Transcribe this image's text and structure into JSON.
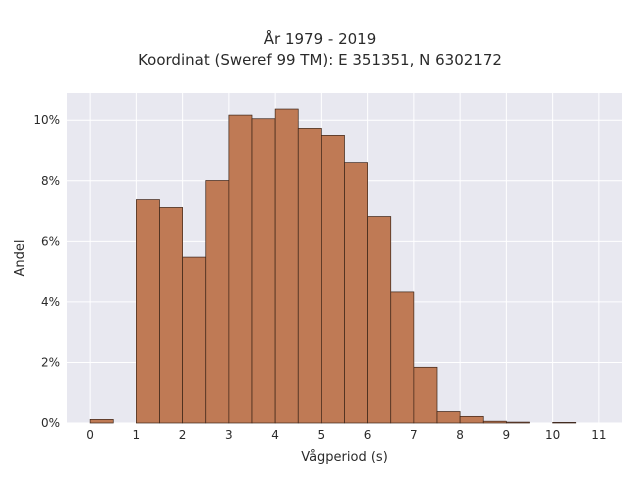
{
  "chart_data": {
    "type": "bar",
    "title": "År 1979 - 2019",
    "subtitle": "Koordinat (Sweref 99 TM): E 351351, N 6302172",
    "xlabel": "Vågperiod (s)",
    "ylabel": "Andel",
    "xlim": [
      -0.5,
      11.5
    ],
    "ylim": [
      0,
      10.9
    ],
    "x_ticks": [
      0,
      1,
      2,
      3,
      4,
      5,
      6,
      7,
      8,
      9,
      10,
      11
    ],
    "y_ticks": [
      0,
      2,
      4,
      6,
      8,
      10
    ],
    "y_tick_suffix": "%",
    "grid": true,
    "bar_color": "#bf7a55",
    "bar_edge_color": "#3b2418",
    "bin_width": 0.5,
    "bins": [
      {
        "x0": 0.0,
        "value": 0.12
      },
      {
        "x0": 1.0,
        "value": 7.38
      },
      {
        "x0": 1.5,
        "value": 7.12
      },
      {
        "x0": 2.0,
        "value": 5.48
      },
      {
        "x0": 2.5,
        "value": 8.01
      },
      {
        "x0": 3.0,
        "value": 10.17
      },
      {
        "x0": 3.5,
        "value": 10.05
      },
      {
        "x0": 4.0,
        "value": 10.37
      },
      {
        "x0": 4.5,
        "value": 9.73
      },
      {
        "x0": 5.0,
        "value": 9.5
      },
      {
        "x0": 5.5,
        "value": 8.6
      },
      {
        "x0": 6.0,
        "value": 6.82
      },
      {
        "x0": 6.5,
        "value": 4.33
      },
      {
        "x0": 7.0,
        "value": 1.84
      },
      {
        "x0": 7.5,
        "value": 0.38
      },
      {
        "x0": 8.0,
        "value": 0.22
      },
      {
        "x0": 8.5,
        "value": 0.06
      },
      {
        "x0": 9.0,
        "value": 0.03
      },
      {
        "x0": 10.0,
        "value": 0.02
      }
    ]
  }
}
